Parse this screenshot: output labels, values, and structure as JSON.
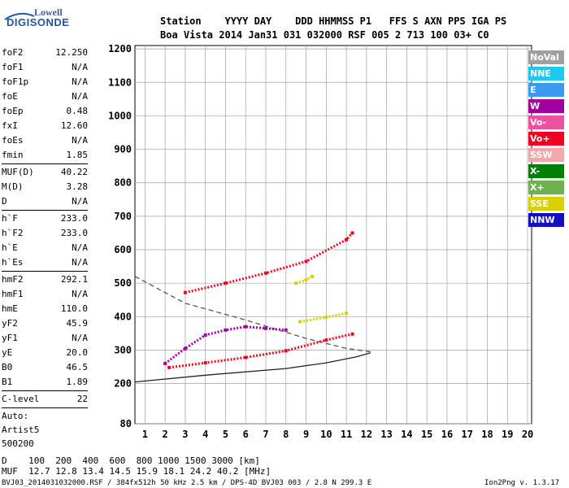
{
  "logo": {
    "line1": "Lowell",
    "line2": "DIGISONDE"
  },
  "header": {
    "labels": "Station    YYYY DAY    DDD HHMMSS P1   FFS S AXN PPS IGA PS",
    "values": "Boa Vista 2014 Jan31 031 032000 RSF 005 2 713 100 03+ C0"
  },
  "params": {
    "g1": [
      {
        "k": "foF2",
        "v": "12.250"
      },
      {
        "k": "foF1",
        "v": "N/A"
      },
      {
        "k": "foF1p",
        "v": "N/A"
      },
      {
        "k": "foE",
        "v": "N/A"
      },
      {
        "k": "foEp",
        "v": "0.48"
      },
      {
        "k": "fxI",
        "v": "12.60"
      },
      {
        "k": "foEs",
        "v": "N/A"
      },
      {
        "k": "fmin",
        "v": "1.85"
      }
    ],
    "g2": [
      {
        "k": "MUF(D)",
        "v": "40.22"
      },
      {
        "k": "M(D)",
        "v": "3.28"
      },
      {
        "k": "D",
        "v": "N/A"
      }
    ],
    "g3": [
      {
        "k": "h`F",
        "v": "233.0"
      },
      {
        "k": "h`F2",
        "v": "233.0"
      },
      {
        "k": "h`E",
        "v": "N/A"
      },
      {
        "k": "h`Es",
        "v": "N/A"
      }
    ],
    "g4": [
      {
        "k": "hmF2",
        "v": "292.1"
      },
      {
        "k": "hmF1",
        "v": "N/A"
      },
      {
        "k": "hmE",
        "v": "110.0"
      },
      {
        "k": "yF2",
        "v": "45.9"
      },
      {
        "k": "yF1",
        "v": "N/A"
      },
      {
        "k": "yE",
        "v": "20.0"
      },
      {
        "k": "B0",
        "v": "46.5"
      },
      {
        "k": "B1",
        "v": "1.89"
      }
    ],
    "clevel": {
      "k": "C-level",
      "v": "22"
    },
    "auto": [
      "Auto:",
      "Artist5",
      "500200"
    ]
  },
  "legend": [
    {
      "label": "NoVal",
      "color": "#a0a0a0"
    },
    {
      "label": "NNE",
      "color": "#1ec8f0"
    },
    {
      "label": "E",
      "color": "#3a9cf0"
    },
    {
      "label": "W",
      "color": "#a000a0"
    },
    {
      "label": "Vo-",
      "color": "#f050a0"
    },
    {
      "label": "Vo+",
      "color": "#f00020"
    },
    {
      "label": "SSW",
      "color": "#f0a8a8"
    },
    {
      "label": "X-",
      "color": "#008000"
    },
    {
      "label": "X+",
      "color": "#70b050"
    },
    {
      "label": "SSE",
      "color": "#d8d000"
    },
    {
      "label": "NNW",
      "color": "#1010c0"
    }
  ],
  "footer": {
    "dist": "D    100  200  400  600  800 1000 1500 3000 [km]",
    "muf": "MUF  12.7 12.8 13.4 14.5 15.9 18.1 24.2 40.2 [MHz]",
    "info": "BVJ03_2014031032000.RSF / 384fx512h 50 kHz 2.5 km / DPS-4D BVJ03 003 / 2.8 N 299.3 E",
    "version": "Ion2Png v. 1.3.17"
  },
  "chart_data": {
    "type": "scatter",
    "xlim": [
      0.5,
      20.2
    ],
    "ylim": [
      80,
      1210
    ],
    "x_ticks": [
      1,
      2,
      3,
      4,
      5,
      6,
      7,
      8,
      9,
      10,
      11,
      12,
      13,
      14,
      15,
      16,
      17,
      18,
      19,
      20
    ],
    "y_ticks": [
      80,
      200,
      300,
      400,
      500,
      600,
      700,
      800,
      900,
      1000,
      1100,
      1200
    ],
    "grid": true,
    "series": [
      {
        "name": "Vo+",
        "color": "#f00020",
        "x": [
          2.2,
          4,
          6,
          8,
          10,
          11.3
        ],
        "y": [
          248,
          262,
          278,
          298,
          330,
          348
        ]
      },
      {
        "name": "Vo+",
        "color": "#f00020",
        "x": [
          3,
          5,
          7,
          9,
          11,
          11.3
        ],
        "y": [
          472,
          500,
          530,
          565,
          630,
          650
        ]
      },
      {
        "name": "SSE",
        "color": "#d8d000",
        "x": [
          8.5,
          9,
          9.3
        ],
        "y": [
          500,
          510,
          520
        ]
      },
      {
        "name": "SSE",
        "color": "#d8d000",
        "x": [
          8.7,
          10,
          11
        ],
        "y": [
          385,
          398,
          410
        ]
      },
      {
        "name": "W",
        "color": "#a000a0",
        "x": [
          2,
          3,
          4,
          5,
          6,
          7,
          8
        ],
        "y": [
          260,
          305,
          345,
          360,
          370,
          365,
          360
        ]
      }
    ],
    "curves": [
      {
        "style": "solid",
        "x": [
          0.5,
          4,
          8,
          10,
          11.5,
          12.2
        ],
        "y": [
          205,
          225,
          245,
          262,
          280,
          292
        ]
      },
      {
        "style": "dashed",
        "x": [
          0.5,
          3,
          6,
          9,
          11,
          12.2
        ],
        "y": [
          520,
          440,
          390,
          335,
          305,
          295
        ]
      }
    ]
  }
}
